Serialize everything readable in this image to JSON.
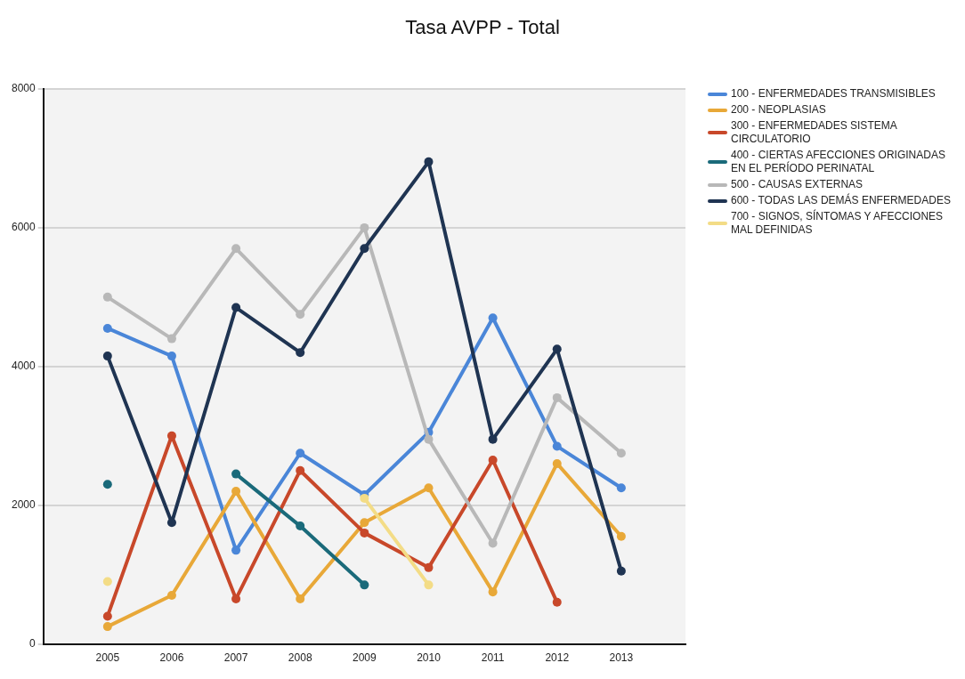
{
  "chart_data": {
    "type": "line",
    "title": "Tasa AVPP - Total",
    "x": [
      2005,
      2006,
      2007,
      2008,
      2009,
      2010,
      2011,
      2012,
      2013
    ],
    "xlim": [
      2004,
      2014
    ],
    "xticks": [
      2005,
      2006,
      2007,
      2008,
      2009,
      2010,
      2011,
      2012,
      2013
    ],
    "ylim": [
      0,
      8000
    ],
    "yticks": [
      0,
      2000,
      4000,
      6000,
      8000
    ],
    "grid": "y",
    "legend": "right",
    "marker": "circle",
    "line_style": "solid",
    "series": [
      {
        "name": "100 - ENFERMEDADES TRANSMISIBLES",
        "color": "#4a86d8",
        "values": [
          4550,
          4150,
          1350,
          2750,
          2150,
          3050,
          4700,
          2850,
          2250
        ]
      },
      {
        "name": "200 - NEOPLASIAS",
        "color": "#e8a838",
        "values": [
          250,
          700,
          2200,
          650,
          1750,
          2250,
          750,
          2600,
          1550
        ]
      },
      {
        "name": "300 - ENFERMEDADES SISTEMA CIRCULATORIO",
        "color": "#c8482a",
        "values": [
          400,
          3000,
          650,
          2500,
          1600,
          1100,
          2650,
          600,
          null
        ]
      },
      {
        "name": "400 - CIERTAS AFECCIONES ORIGINADAS EN EL PERÍODO PERINATAL",
        "color": "#1a6a7a",
        "values": [
          2300,
          null,
          2450,
          1700,
          850,
          null,
          null,
          null,
          null
        ]
      },
      {
        "name": "500 - CAUSAS EXTERNAS",
        "color": "#b8b8b8",
        "values": [
          5000,
          4400,
          5700,
          4750,
          6000,
          2950,
          1450,
          3550,
          2750
        ]
      },
      {
        "name": "600 - TODAS LAS DEMÁS ENFERMEDADES",
        "color": "#1f3452",
        "values": [
          4150,
          1750,
          4850,
          4200,
          5700,
          6950,
          2950,
          4250,
          1050
        ]
      },
      {
        "name": "700 - SIGNOS, SÍNTOMAS Y AFECCIONES MAL DEFINIDAS",
        "color": "#f3dc86",
        "values": [
          900,
          null,
          null,
          null,
          2100,
          850,
          null,
          null,
          null
        ]
      }
    ]
  }
}
